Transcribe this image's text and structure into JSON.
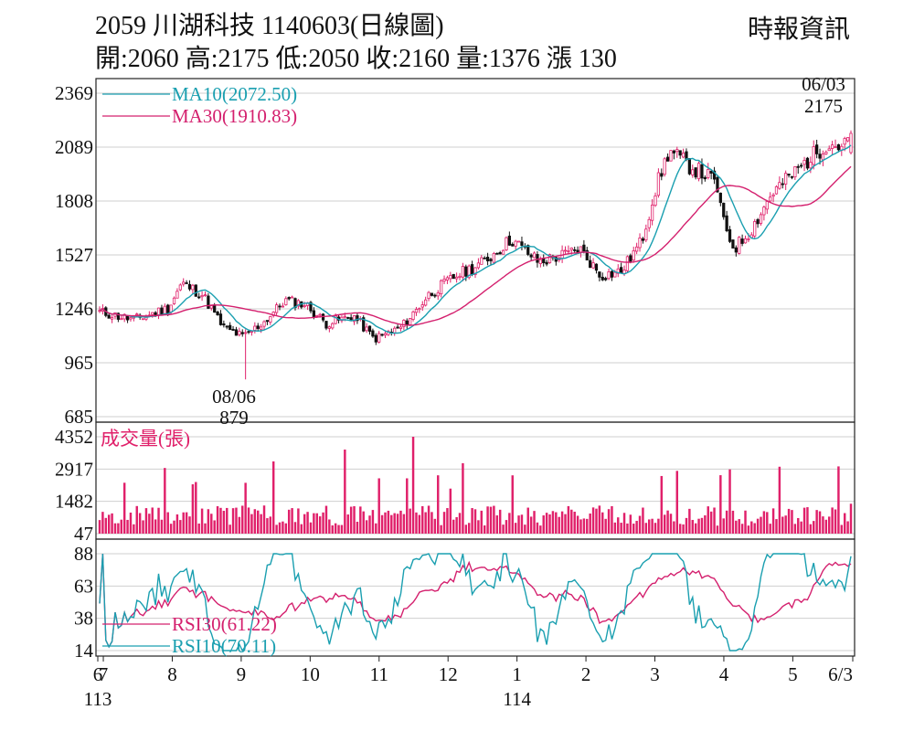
{
  "header": {
    "title": "2059  川湖科技 1140603(日線圖)",
    "ohlc": "開:2060 高:2175 低:2050 收:2160 量:1376 漲 130",
    "source": "時報資訊"
  },
  "colors": {
    "up": "#e0206a",
    "down": "#111111",
    "volume": "#e0206a",
    "ma10": "#1a9fb0",
    "ma30": "#d4206e",
    "rsi30": "#d4206e",
    "rsi10": "#1a9fb0",
    "grid": "#cfcfcf",
    "axis": "#222222"
  },
  "chart_data": [
    {
      "type": "candlestick",
      "ylim": [
        685,
        2369
      ],
      "yticks": [
        "2369",
        "2089",
        "1808",
        "1527",
        "1246",
        "965",
        "685"
      ],
      "grid": true,
      "legend": [
        {
          "name": "MA10(2072.50)",
          "color": "#1a9fb0"
        },
        {
          "name": "MA30(1910.83)",
          "color": "#d4206e"
        }
      ],
      "anchors": [
        {
          "month_index": 0,
          "price": 1230
        },
        {
          "month_index": 0.5,
          "price": 1190
        },
        {
          "month_index": 1.0,
          "price": 1250
        },
        {
          "month_index": 1.2,
          "price": 1380
        },
        {
          "month_index": 1.5,
          "price": 1320
        },
        {
          "month_index": 1.8,
          "price": 1150
        },
        {
          "month_index": 2.1,
          "price": 1100
        },
        {
          "month_index": 2.4,
          "price": 1180
        },
        {
          "month_index": 2.7,
          "price": 1290
        },
        {
          "month_index": 3.0,
          "price": 1270
        },
        {
          "month_index": 3.3,
          "price": 1170
        },
        {
          "month_index": 3.7,
          "price": 1210
        },
        {
          "month_index": 4.0,
          "price": 1090
        },
        {
          "month_index": 4.4,
          "price": 1150
        },
        {
          "month_index": 4.8,
          "price": 1320
        },
        {
          "month_index": 5.2,
          "price": 1420
        },
        {
          "month_index": 5.6,
          "price": 1490
        },
        {
          "month_index": 6.0,
          "price": 1610
        },
        {
          "month_index": 6.4,
          "price": 1490
        },
        {
          "month_index": 6.8,
          "price": 1530
        },
        {
          "month_index": 7.0,
          "price": 1560
        },
        {
          "month_index": 7.3,
          "price": 1420
        },
        {
          "month_index": 7.6,
          "price": 1440
        },
        {
          "month_index": 7.9,
          "price": 1600
        },
        {
          "month_index": 8.1,
          "price": 1870
        },
        {
          "month_index": 8.3,
          "price": 2070
        },
        {
          "month_index": 8.6,
          "price": 1990
        },
        {
          "month_index": 8.9,
          "price": 1930
        },
        {
          "month_index": 9.0,
          "price": 1880
        },
        {
          "month_index": 9.1,
          "price": 1680
        },
        {
          "month_index": 9.25,
          "price": 1560
        },
        {
          "month_index": 9.5,
          "price": 1660
        },
        {
          "month_index": 9.8,
          "price": 1850
        },
        {
          "month_index": 10.2,
          "price": 1980
        },
        {
          "month_index": 10.6,
          "price": 2110
        },
        {
          "month_index": 10.85,
          "price": 2090
        },
        {
          "month_index": 10.95,
          "price": 2160
        }
      ],
      "annotations": [
        {
          "label": "08/06",
          "value": "879"
        },
        {
          "label": "06/03",
          "value": "2175"
        }
      ]
    },
    {
      "type": "bar",
      "title": "成交量(張)",
      "ylim": [
        47,
        4352
      ],
      "yticks": [
        "4352",
        "2917",
        "1482",
        "47"
      ]
    },
    {
      "type": "line",
      "ylim": [
        14,
        88
      ],
      "yticks": [
        "88",
        "63",
        "38",
        "14"
      ],
      "series": [
        {
          "name": "RSI30(61.22)",
          "color": "#d4206e"
        },
        {
          "name": "RSI10(70.11)",
          "color": "#1a9fb0"
        }
      ]
    }
  ],
  "xaxis": {
    "months": [
      "6",
      "7",
      "8",
      "9",
      "10",
      "11",
      "12",
      "1",
      "2",
      "3",
      "4",
      "5",
      "6/3"
    ],
    "years": [
      "113",
      "114"
    ]
  }
}
